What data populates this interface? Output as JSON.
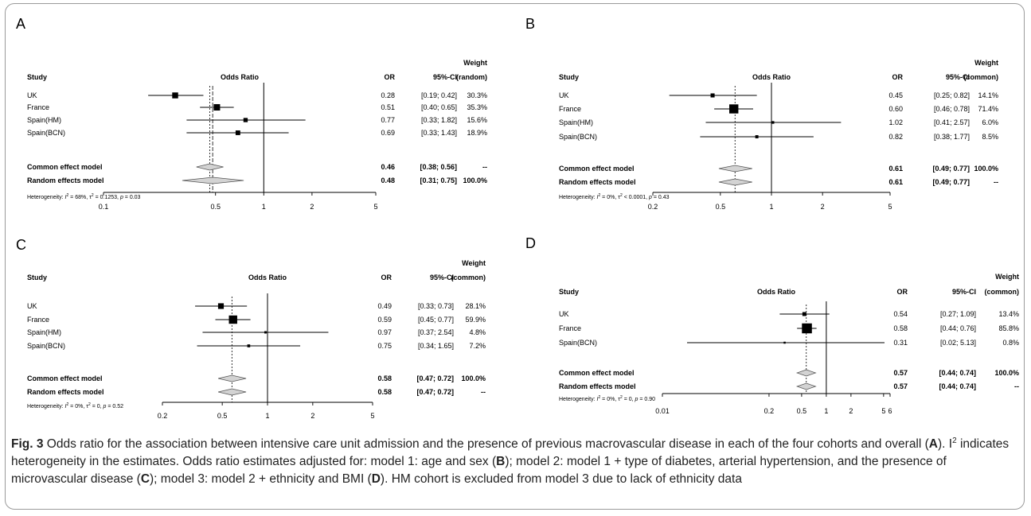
{
  "chart_data": [
    {
      "panel": "A",
      "type": "forest",
      "weight_type": "(random)",
      "headers": {
        "study": "Study",
        "plot": "Odds Ratio",
        "or": "OR",
        "ci": "95%-CI",
        "weight": "Weight"
      },
      "xscale": "log",
      "xlim": [
        0.1,
        5
      ],
      "ticks": [
        0.1,
        0.5,
        1,
        2,
        5
      ],
      "ref_line": 1,
      "studies": [
        {
          "name": "UK",
          "or": 0.28,
          "lo": 0.19,
          "hi": 0.42,
          "or_txt": "0.28",
          "ci_txt": "[0.19; 0.42]",
          "w_txt": "30.3%",
          "w": 30.3
        },
        {
          "name": "France",
          "or": 0.51,
          "lo": 0.4,
          "hi": 0.65,
          "or_txt": "0.51",
          "ci_txt": "[0.40; 0.65]",
          "w_txt": "35.3%",
          "w": 35.3
        },
        {
          "name": "Spain(HM)",
          "or": 0.77,
          "lo": 0.33,
          "hi": 1.82,
          "or_txt": "0.77",
          "ci_txt": "[0.33; 1.82]",
          "w_txt": "15.6%",
          "w": 15.6
        },
        {
          "name": "Spain(BCN)",
          "or": 0.69,
          "lo": 0.33,
          "hi": 1.43,
          "or_txt": "0.69",
          "ci_txt": "[0.33; 1.43]",
          "w_txt": "18.9%",
          "w": 18.9
        }
      ],
      "summary": [
        {
          "name": "Common effect model",
          "or": 0.46,
          "lo": 0.38,
          "hi": 0.56,
          "or_txt": "0.46",
          "ci_txt": "[0.38; 0.56]",
          "w_txt": "--"
        },
        {
          "name": "Random effects model",
          "or": 0.48,
          "lo": 0.31,
          "hi": 0.75,
          "or_txt": "0.48",
          "ci_txt": "[0.31; 0.75]",
          "w_txt": "100.0%"
        }
      ],
      "heterogeneity": {
        "prefix": "Heterogeneity: ",
        "i2": "I",
        "i2_val": " = 68%, ",
        "tau2": "τ",
        "tau2_val": " = 0.1253, ",
        "p": "p",
        "p_val": " = 0.03"
      }
    },
    {
      "panel": "B",
      "type": "forest",
      "weight_type": "(common)",
      "headers": {
        "study": "Study",
        "plot": "Odds Ratio",
        "or": "OR",
        "ci": "95%-CI",
        "weight": "Weight"
      },
      "xscale": "log",
      "xlim": [
        0.2,
        5
      ],
      "ticks": [
        0.2,
        0.5,
        1,
        2,
        5
      ],
      "ref_line": 1,
      "studies": [
        {
          "name": "UK",
          "or": 0.45,
          "lo": 0.25,
          "hi": 0.82,
          "or_txt": "0.45",
          "ci_txt": "[0.25; 0.82]",
          "w_txt": "14.1%",
          "w": 14.1
        },
        {
          "name": "France",
          "or": 0.6,
          "lo": 0.46,
          "hi": 0.78,
          "or_txt": "0.60",
          "ci_txt": "[0.46; 0.78]",
          "w_txt": "71.4%",
          "w": 71.4
        },
        {
          "name": "Spain(HM)",
          "or": 1.02,
          "lo": 0.41,
          "hi": 2.57,
          "or_txt": "1.02",
          "ci_txt": "[0.41; 2.57]",
          "w_txt": "6.0%",
          "w": 6.0
        },
        {
          "name": "Spain(BCN)",
          "or": 0.82,
          "lo": 0.38,
          "hi": 1.77,
          "or_txt": "0.82",
          "ci_txt": "[0.38; 1.77]",
          "w_txt": "8.5%",
          "w": 8.5
        }
      ],
      "summary": [
        {
          "name": "Common effect model",
          "or": 0.61,
          "lo": 0.49,
          "hi": 0.77,
          "or_txt": "0.61",
          "ci_txt": "[0.49; 0.77]",
          "w_txt": "100.0%"
        },
        {
          "name": "Random effects model",
          "or": 0.61,
          "lo": 0.49,
          "hi": 0.77,
          "or_txt": "0.61",
          "ci_txt": "[0.49; 0.77]",
          "w_txt": "--"
        }
      ],
      "heterogeneity": {
        "prefix": "Heterogeneity: ",
        "i2": "I",
        "i2_val": " = 0%, ",
        "tau2": "τ",
        "tau2_val": " < 0.0001, ",
        "p": "p",
        "p_val": " = 0.43"
      }
    },
    {
      "panel": "C",
      "type": "forest",
      "weight_type": "(common)",
      "headers": {
        "study": "Study",
        "plot": "Odds Ratio",
        "or": "OR",
        "ci": "95%-CI",
        "weight": "Weight"
      },
      "xscale": "log",
      "xlim": [
        0.2,
        5
      ],
      "ticks": [
        0.2,
        0.5,
        1,
        2,
        5
      ],
      "ref_line": 1,
      "studies": [
        {
          "name": "UK",
          "or": 0.49,
          "lo": 0.33,
          "hi": 0.73,
          "or_txt": "0.49",
          "ci_txt": "[0.33; 0.73]",
          "w_txt": "28.1%",
          "w": 28.1
        },
        {
          "name": "France",
          "or": 0.59,
          "lo": 0.45,
          "hi": 0.77,
          "or_txt": "0.59",
          "ci_txt": "[0.45; 0.77]",
          "w_txt": "59.9%",
          "w": 59.9
        },
        {
          "name": "Spain(HM)",
          "or": 0.97,
          "lo": 0.37,
          "hi": 2.54,
          "or_txt": "0.97",
          "ci_txt": "[0.37; 2.54]",
          "w_txt": "4.8%",
          "w": 4.8
        },
        {
          "name": "Spain(BCN)",
          "or": 0.75,
          "lo": 0.34,
          "hi": 1.65,
          "or_txt": "0.75",
          "ci_txt": "[0.34; 1.65]",
          "w_txt": "7.2%",
          "w": 7.2
        }
      ],
      "summary": [
        {
          "name": "Common effect model",
          "or": 0.58,
          "lo": 0.47,
          "hi": 0.72,
          "or_txt": "0.58",
          "ci_txt": "[0.47; 0.72]",
          "w_txt": "100.0%"
        },
        {
          "name": "Random effects model",
          "or": 0.58,
          "lo": 0.47,
          "hi": 0.72,
          "or_txt": "0.58",
          "ci_txt": "[0.47; 0.72]",
          "w_txt": "--"
        }
      ],
      "heterogeneity": {
        "prefix": "Heterogeneity: ",
        "i2": "I",
        "i2_val": " = 0%, ",
        "tau2": "τ",
        "tau2_val": " = 0, ",
        "p": "p",
        "p_val": " = 0.52"
      }
    },
    {
      "panel": "D",
      "type": "forest",
      "weight_type": "(common)",
      "headers": {
        "study": "Study",
        "plot": "Odds Ratio",
        "or": "OR",
        "ci": "95%-CI",
        "weight": "Weight"
      },
      "xscale": "log",
      "xlim": [
        0.01,
        6
      ],
      "ticks": [
        0.01,
        0.2,
        0.5,
        1,
        2,
        5,
        6
      ],
      "ref_line": 1,
      "studies": [
        {
          "name": "UK",
          "or": 0.54,
          "lo": 0.27,
          "hi": 1.09,
          "or_txt": "0.54",
          "ci_txt": "[0.27; 1.09]",
          "w_txt": "13.4%",
          "w": 13.4
        },
        {
          "name": "France",
          "or": 0.58,
          "lo": 0.44,
          "hi": 0.76,
          "or_txt": "0.58",
          "ci_txt": "[0.44; 0.76]",
          "w_txt": "85.8%",
          "w": 85.8
        },
        {
          "name": "Spain(BCN)",
          "or": 0.31,
          "lo": 0.02,
          "hi": 5.13,
          "or_txt": "0.31",
          "ci_txt": "[0.02; 5.13]",
          "w_txt": "0.8%",
          "w": 0.8
        }
      ],
      "summary": [
        {
          "name": "Common effect model",
          "or": 0.57,
          "lo": 0.44,
          "hi": 0.74,
          "or_txt": "0.57",
          "ci_txt": "[0.44; 0.74]",
          "w_txt": "100.0%"
        },
        {
          "name": "Random effects model",
          "or": 0.57,
          "lo": 0.44,
          "hi": 0.74,
          "or_txt": "0.57",
          "ci_txt": "[0.44; 0.74]",
          "w_txt": "--"
        }
      ],
      "heterogeneity": {
        "prefix": "Heterogeneity: ",
        "i2": "I",
        "i2_val": " = 0%, ",
        "tau2": "τ",
        "tau2_val": " = 0, ",
        "p": "p",
        "p_val": " = 0.90"
      }
    }
  ],
  "caption": {
    "label": "Fig. 3",
    "part1": "  Odds ratio for the association between intensive care unit admission and the presence of previous macrovascular disease in each of the four cohorts and overall (",
    "A": "A",
    "part2": "). I",
    "sup": "2",
    "part3": " indicates heterogeneity in the estimates. Odds ratio estimates adjusted for: model 1: age and sex (",
    "B": "B",
    "part4": "); model 2: model 1 + type of diabetes, arterial hypertension, and the presence of microvascular disease (",
    "C": "C",
    "part5": "); model 3: model 2 + ethnicity and BMI (",
    "D": "D",
    "part6": "). HM cohort is excluded from model 3 due to lack of ethnicity data"
  }
}
